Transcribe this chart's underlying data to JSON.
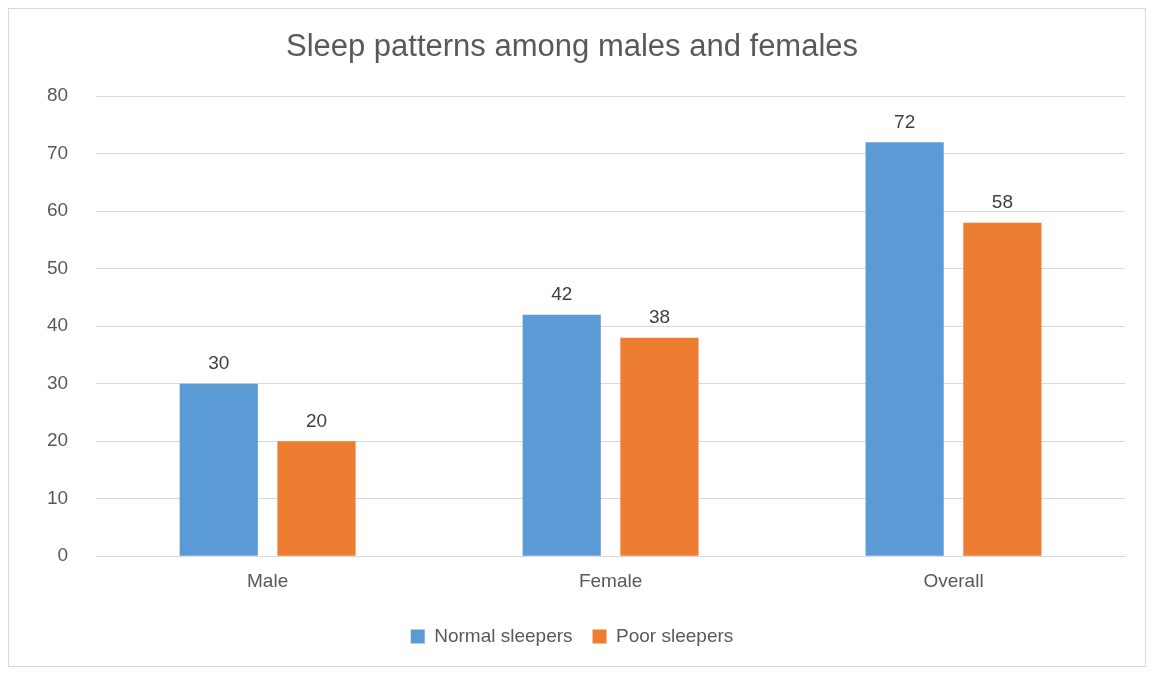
{
  "chart_data": {
    "type": "bar",
    "title": "Sleep patterns among males and females",
    "categories": [
      "Male",
      "Female",
      "Overall"
    ],
    "series": [
      {
        "name": "Normal sleepers",
        "color": "#5b9bd5",
        "values": [
          30,
          42,
          72
        ]
      },
      {
        "name": "Poor sleepers",
        "color": "#ed7d31",
        "values": [
          20,
          38,
          58
        ]
      }
    ],
    "ylim": [
      0,
      80
    ],
    "yticks": [
      0,
      10,
      20,
      30,
      40,
      50,
      60,
      70,
      80
    ],
    "grid": "y",
    "legend": "bottom",
    "data_labels": true
  }
}
